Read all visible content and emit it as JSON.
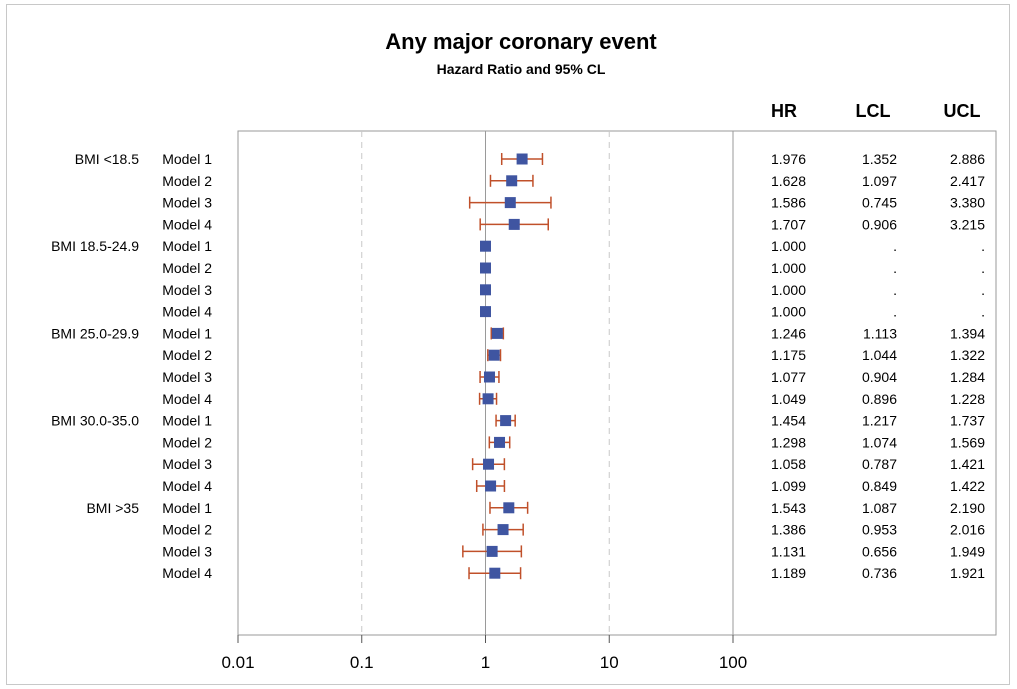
{
  "title": "Any major coronary event",
  "subtitle": "Hazard Ratio and 95% CL",
  "columns": [
    "HR",
    "LCL",
    "UCL"
  ],
  "chart_data": {
    "type": "forest",
    "title": "Any major coronary event",
    "subtitle": "Hazard Ratio and 95% CL",
    "x_scale": "log",
    "xlim": [
      0.01,
      100
    ],
    "x_ticks": [
      "0.01",
      "0.1",
      "1",
      "10",
      "100"
    ],
    "reference_lines": [
      0.1,
      1,
      10
    ],
    "colors": {
      "marker": "#3f55a1",
      "ci": "#c0502a",
      "axis": "#9a9a9a",
      "grid": "#c8c8c8"
    },
    "rows": [
      {
        "group": "BMI <18.5",
        "model": "Model 1",
        "hr": 1.976,
        "lcl": 1.352,
        "ucl": 2.886,
        "hr_text": "1.976",
        "lcl_text": "1.352",
        "ucl_text": "2.886"
      },
      {
        "group": "",
        "model": "Model 2",
        "hr": 1.628,
        "lcl": 1.097,
        "ucl": 2.417,
        "hr_text": "1.628",
        "lcl_text": "1.097",
        "ucl_text": "2.417"
      },
      {
        "group": "",
        "model": "Model 3",
        "hr": 1.586,
        "lcl": 0.745,
        "ucl": 3.38,
        "hr_text": "1.586",
        "lcl_text": "0.745",
        "ucl_text": "3.380"
      },
      {
        "group": "",
        "model": "Model 4",
        "hr": 1.707,
        "lcl": 0.906,
        "ucl": 3.215,
        "hr_text": "1.707",
        "lcl_text": "0.906",
        "ucl_text": "3.215"
      },
      {
        "group": "BMI 18.5-24.9",
        "model": "Model 1",
        "hr": 1.0,
        "lcl": null,
        "ucl": null,
        "hr_text": "1.000",
        "lcl_text": ".",
        "ucl_text": "."
      },
      {
        "group": "",
        "model": "Model 2",
        "hr": 1.0,
        "lcl": null,
        "ucl": null,
        "hr_text": "1.000",
        "lcl_text": ".",
        "ucl_text": "."
      },
      {
        "group": "",
        "model": "Model 3",
        "hr": 1.0,
        "lcl": null,
        "ucl": null,
        "hr_text": "1.000",
        "lcl_text": ".",
        "ucl_text": "."
      },
      {
        "group": "",
        "model": "Model 4",
        "hr": 1.0,
        "lcl": null,
        "ucl": null,
        "hr_text": "1.000",
        "lcl_text": ".",
        "ucl_text": "."
      },
      {
        "group": "BMI 25.0-29.9",
        "model": "Model 1",
        "hr": 1.246,
        "lcl": 1.113,
        "ucl": 1.394,
        "hr_text": "1.246",
        "lcl_text": "1.113",
        "ucl_text": "1.394"
      },
      {
        "group": "",
        "model": "Model 2",
        "hr": 1.175,
        "lcl": 1.044,
        "ucl": 1.322,
        "hr_text": "1.175",
        "lcl_text": "1.044",
        "ucl_text": "1.322"
      },
      {
        "group": "",
        "model": "Model 3",
        "hr": 1.077,
        "lcl": 0.904,
        "ucl": 1.284,
        "hr_text": "1.077",
        "lcl_text": "0.904",
        "ucl_text": "1.284"
      },
      {
        "group": "",
        "model": "Model 4",
        "hr": 1.049,
        "lcl": 0.896,
        "ucl": 1.228,
        "hr_text": "1.049",
        "lcl_text": "0.896",
        "ucl_text": "1.228"
      },
      {
        "group": "BMI 30.0-35.0",
        "model": "Model 1",
        "hr": 1.454,
        "lcl": 1.217,
        "ucl": 1.737,
        "hr_text": "1.454",
        "lcl_text": "1.217",
        "ucl_text": "1.737"
      },
      {
        "group": "",
        "model": "Model 2",
        "hr": 1.298,
        "lcl": 1.074,
        "ucl": 1.569,
        "hr_text": "1.298",
        "lcl_text": "1.074",
        "ucl_text": "1.569"
      },
      {
        "group": "",
        "model": "Model 3",
        "hr": 1.058,
        "lcl": 0.787,
        "ucl": 1.421,
        "hr_text": "1.058",
        "lcl_text": "0.787",
        "ucl_text": "1.421"
      },
      {
        "group": "",
        "model": "Model 4",
        "hr": 1.099,
        "lcl": 0.849,
        "ucl": 1.422,
        "hr_text": "1.099",
        "lcl_text": "0.849",
        "ucl_text": "1.422"
      },
      {
        "group": "BMI >35",
        "model": "Model 1",
        "hr": 1.543,
        "lcl": 1.087,
        "ucl": 2.19,
        "hr_text": "1.543",
        "lcl_text": "1.087",
        "ucl_text": "2.190"
      },
      {
        "group": "",
        "model": "Model 2",
        "hr": 1.386,
        "lcl": 0.953,
        "ucl": 2.016,
        "hr_text": "1.386",
        "lcl_text": "0.953",
        "ucl_text": "2.016"
      },
      {
        "group": "",
        "model": "Model 3",
        "hr": 1.131,
        "lcl": 0.656,
        "ucl": 1.949,
        "hr_text": "1.131",
        "lcl_text": "0.656",
        "ucl_text": "1.949"
      },
      {
        "group": "",
        "model": "Model 4",
        "hr": 1.189,
        "lcl": 0.736,
        "ucl": 1.921,
        "hr_text": "1.189",
        "lcl_text": "0.736",
        "ucl_text": "1.921"
      }
    ]
  }
}
